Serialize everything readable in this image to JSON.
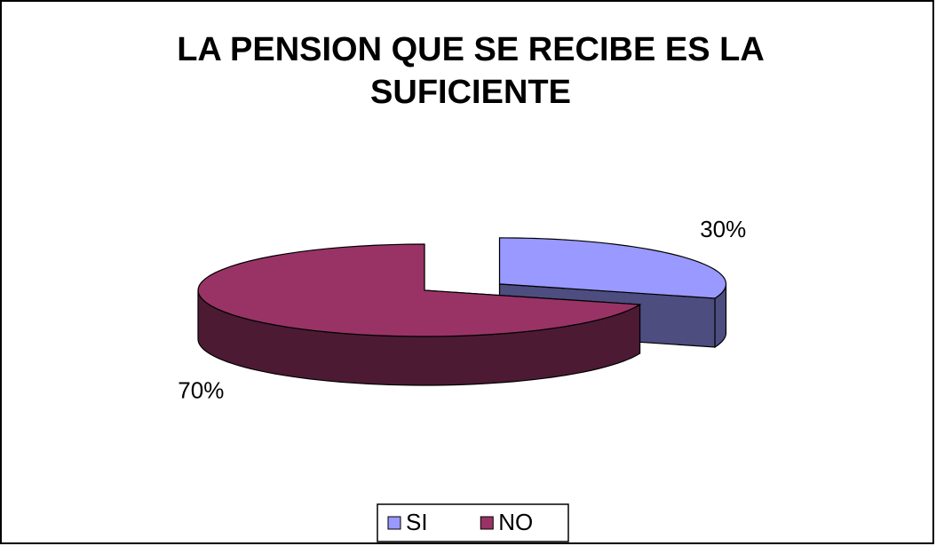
{
  "chart_data": {
    "type": "pie3d",
    "title": "LA PENSION QUE SE RECIBE ES LA SUFICIENTE",
    "categories": [
      "SI",
      "NO"
    ],
    "values": [
      30,
      70
    ],
    "value_labels": [
      "30%",
      "70%"
    ],
    "colors": [
      "#9999ff",
      "#993366"
    ],
    "legend": "bottom"
  }
}
